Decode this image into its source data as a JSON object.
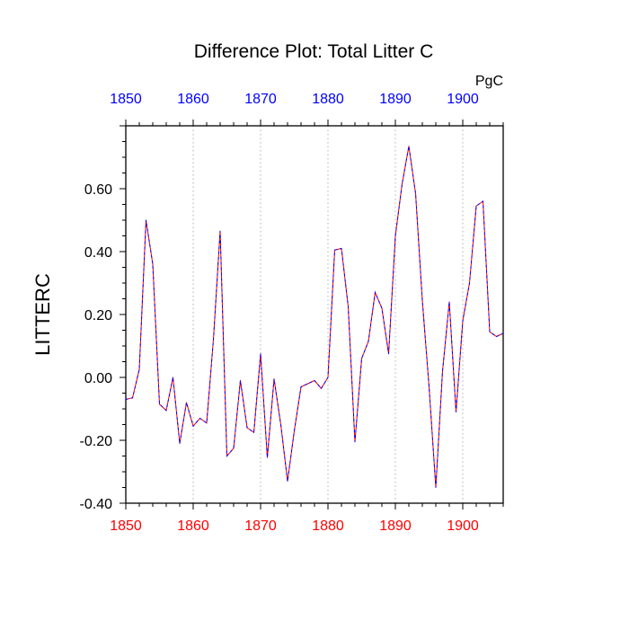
{
  "chart_data": {
    "type": "line",
    "title": "Difference Plot: Total Litter C",
    "units_label": "PgC",
    "ylabel": "LITTERC",
    "xlim": [
      1850,
      1906
    ],
    "ylim": [
      -0.4,
      0.8
    ],
    "x_ticks": [
      1850,
      1860,
      1870,
      1880,
      1890,
      1900
    ],
    "x_tick_labels": [
      "1850",
      "1860",
      "1870",
      "1880",
      "1890",
      "1900"
    ],
    "y_ticks": [
      -0.4,
      -0.2,
      0.0,
      0.2,
      0.4,
      0.6
    ],
    "y_tick_labels": [
      "-0.40",
      "-0.20",
      "0.00",
      "0.20",
      "0.40",
      "0.60"
    ],
    "grid": "vertical-dotted",
    "colors": {
      "top_axis_labels": "#0000ff",
      "bottom_axis_labels": "#ff0000",
      "line_dash_a": "#0000ff",
      "line_dash_b": "#ff0000",
      "grid": "#b0b0b0",
      "frame": "#000000"
    },
    "series": [
      {
        "x": [
          1850,
          1851,
          1852,
          1853,
          1854,
          1855,
          1856,
          1857,
          1858,
          1859,
          1860,
          1861,
          1862,
          1863,
          1864,
          1865,
          1866,
          1867,
          1868,
          1869,
          1870,
          1871,
          1872,
          1873,
          1874,
          1875,
          1876,
          1877,
          1878,
          1879,
          1880,
          1881,
          1882,
          1883,
          1884,
          1885,
          1886,
          1887,
          1888,
          1889,
          1890,
          1891,
          1892,
          1893,
          1894,
          1895,
          1896,
          1897,
          1898,
          1899,
          1900,
          1901,
          1902,
          1903,
          1904,
          1905,
          1906
        ],
        "y": [
          -0.07,
          -0.065,
          0.025,
          0.5,
          0.36,
          -0.085,
          -0.105,
          0.0,
          -0.21,
          -0.08,
          -0.155,
          -0.13,
          -0.145,
          0.12,
          0.465,
          -0.25,
          -0.225,
          -0.01,
          -0.16,
          -0.175,
          0.075,
          -0.255,
          -0.005,
          -0.15,
          -0.33,
          -0.17,
          -0.03,
          -0.02,
          -0.01,
          -0.035,
          0.0,
          0.405,
          0.41,
          0.225,
          -0.205,
          0.06,
          0.115,
          0.27,
          0.22,
          0.075,
          0.45,
          0.615,
          0.735,
          0.585,
          0.245,
          -0.03,
          -0.35,
          0.02,
          0.24,
          -0.11,
          0.18,
          0.3,
          0.545,
          0.56,
          0.145,
          0.13,
          0.14
        ]
      }
    ]
  }
}
